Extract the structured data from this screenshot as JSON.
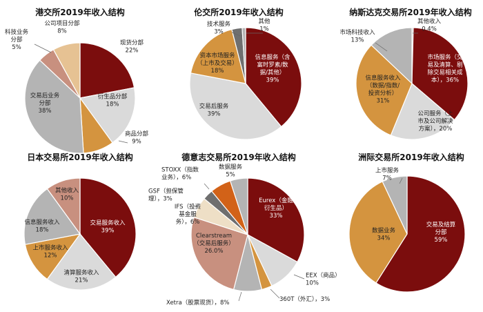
{
  "colors": {
    "maroon": "#7b0d0d",
    "gray": "#b4b4b4",
    "light_gray": "#dadada",
    "orange": "#d4943f",
    "peach": "#e6c293",
    "rose": "#c8907f",
    "dark_gray": "#6f6f6f",
    "deep_orange": "#d26218",
    "cream": "#eedfc6"
  },
  "chart_data": [
    {
      "type": "pie",
      "title": "港交所2019年收入结构",
      "slices": [
        {
          "name": "现货分部",
          "value": 22,
          "label": [
            "现货分部",
            "22%"
          ],
          "color": "#7b0d0d"
        },
        {
          "name": "衍生品分部",
          "value": 18,
          "label": [
            "衍生品分部",
            "18%"
          ],
          "color": "#dadada"
        },
        {
          "name": "商品分部",
          "value": 9,
          "label": [
            "商品分部",
            "9%"
          ],
          "color": "#d4943f"
        },
        {
          "name": "交易后业务分部",
          "value": 38,
          "label": [
            "交易后业务",
            "分部",
            "38%"
          ],
          "color": "#b4b4b4"
        },
        {
          "name": "科技业务分部",
          "value": 5,
          "label": [
            "科技业务",
            "分部",
            "5%"
          ],
          "color": "#c8907f"
        },
        {
          "name": "公司项目分部",
          "value": 8,
          "label": [
            "公司项目分部",
            "8%"
          ],
          "color": "#e6c293"
        }
      ]
    },
    {
      "type": "pie",
      "title": "伦交所2019年收入结构",
      "slices": [
        {
          "name": "信息服务（含富时罗素/数据/其他）",
          "value": 39,
          "label": [
            "信息服务（含",
            "富时罗素/数",
            "据/其他）",
            "39%"
          ],
          "color": "#7b0d0d"
        },
        {
          "name": "交易后服务",
          "value": 39,
          "label": [
            "交易后服务",
            "39%"
          ],
          "color": "#dadada"
        },
        {
          "name": "资本市场服务（上市及交易）",
          "value": 18,
          "label": [
            "资本市场服务",
            "（上市及交易）",
            "18%"
          ],
          "color": "#d4943f"
        },
        {
          "name": "技术服务",
          "value": 3,
          "label": [
            "技术服务",
            "3%"
          ],
          "color": "#6f6f6f"
        },
        {
          "name": "其他",
          "value": 1,
          "label": [
            "其他",
            "1%"
          ],
          "color": "#b4b4b4"
        }
      ]
    },
    {
      "type": "pie",
      "title": "纳斯达克交易所2019年收入结构",
      "slices": [
        {
          "name": "其他收入",
          "value": 0.4,
          "label": [
            "其他收入",
            "0.4%"
          ],
          "color": "#b4b4b4"
        },
        {
          "name": "市场服务（交易及清算、剔除交易相关成本）",
          "value": 36,
          "label": [
            "市场服务（交",
            "易及清算、剔",
            "除交易相关成",
            "本），36%"
          ],
          "color": "#7b0d0d"
        },
        {
          "name": "公司服务（上市及公司解决方案）",
          "value": 20,
          "label": [
            "公司服务（上",
            "市及公司解决",
            "方案），20%"
          ],
          "color": "#dadada"
        },
        {
          "name": "信息服务收入（数据/指数/投资分析）",
          "value": 31,
          "label": [
            "信息服务收入",
            "（数据/指数/",
            "投资分析）",
            "31%"
          ],
          "color": "#d4943f"
        },
        {
          "name": "市场科技收入",
          "value": 13,
          "label": [
            "市场科技收入",
            "13%"
          ],
          "color": "#b4b4b4"
        }
      ]
    },
    {
      "type": "pie",
      "title": "日本交易所2019年收入结构",
      "slices": [
        {
          "name": "交易服务收入",
          "value": 39,
          "label": [
            "交易服务收入",
            "39%"
          ],
          "color": "#7b0d0d"
        },
        {
          "name": "清算服务收入",
          "value": 21,
          "label": [
            "清算服务收入",
            "21%"
          ],
          "color": "#dadada"
        },
        {
          "name": "上市服务收入",
          "value": 12,
          "label": [
            "上市服务收入",
            "12%"
          ],
          "color": "#d4943f"
        },
        {
          "name": "信息服务收入",
          "value": 18,
          "label": [
            "信息服务收入",
            "18%"
          ],
          "color": "#b4b4b4"
        },
        {
          "name": "其他收入",
          "value": 10,
          "label": [
            "其他收入",
            "10%"
          ],
          "color": "#c8907f"
        }
      ]
    },
    {
      "type": "pie",
      "title": "德意志交易所2019年收入结构",
      "slices": [
        {
          "name": "Eurex（金融衍生品）",
          "value": 33,
          "label": [
            "Eurex（金融",
            "衍生品）",
            "33%"
          ],
          "color": "#7b0d0d"
        },
        {
          "name": "EEX（商品）",
          "value": 10,
          "label": [
            "EEX（商品）",
            "10%"
          ],
          "color": "#dadada"
        },
        {
          "name": "360T（外汇）",
          "value": 3,
          "label": [
            "360T（外汇），3%"
          ],
          "color": "#d4943f"
        },
        {
          "name": "Xetra（股票现货）",
          "value": 8,
          "label": [
            "Xetra（股票现货），8%"
          ],
          "color": "#b4b4b4"
        },
        {
          "name": "Clearstream（交易后服务）",
          "value": 26,
          "label": [
            "Clearstream",
            "（交易后服务）",
            "26.0%"
          ],
          "color": "#c8907f"
        },
        {
          "name": "IFS（投资基金服务）",
          "value": 6,
          "label": [
            "IFS（投资",
            "基金服",
            "务），6%"
          ],
          "color": "#eedfc6"
        },
        {
          "name": "GSF（担保管理）",
          "value": 3,
          "label": [
            "GSF（担保管",
            "理），3%"
          ],
          "color": "#6f6f6f"
        },
        {
          "name": "STOXX（指数业务）",
          "value": 6,
          "label": [
            "STOXX（指数",
            "业务），6%"
          ],
          "color": "#d26218"
        },
        {
          "name": "数据服务",
          "value": 5,
          "label": [
            "数据服务",
            "5%"
          ],
          "color": "#b4b4b4"
        }
      ]
    },
    {
      "type": "pie",
      "title": "洲际交易所2019年收入结构",
      "slices": [
        {
          "name": "交易及结算分部",
          "value": 59,
          "label": [
            "交易及结算",
            "分部",
            "59%"
          ],
          "color": "#7b0d0d"
        },
        {
          "name": "数据业务",
          "value": 34,
          "label": [
            "数据业务",
            "34%"
          ],
          "color": "#d4943f"
        },
        {
          "name": "上市服务",
          "value": 7,
          "label": [
            "上市服务",
            "7%"
          ],
          "color": "#b4b4b4"
        }
      ]
    }
  ]
}
